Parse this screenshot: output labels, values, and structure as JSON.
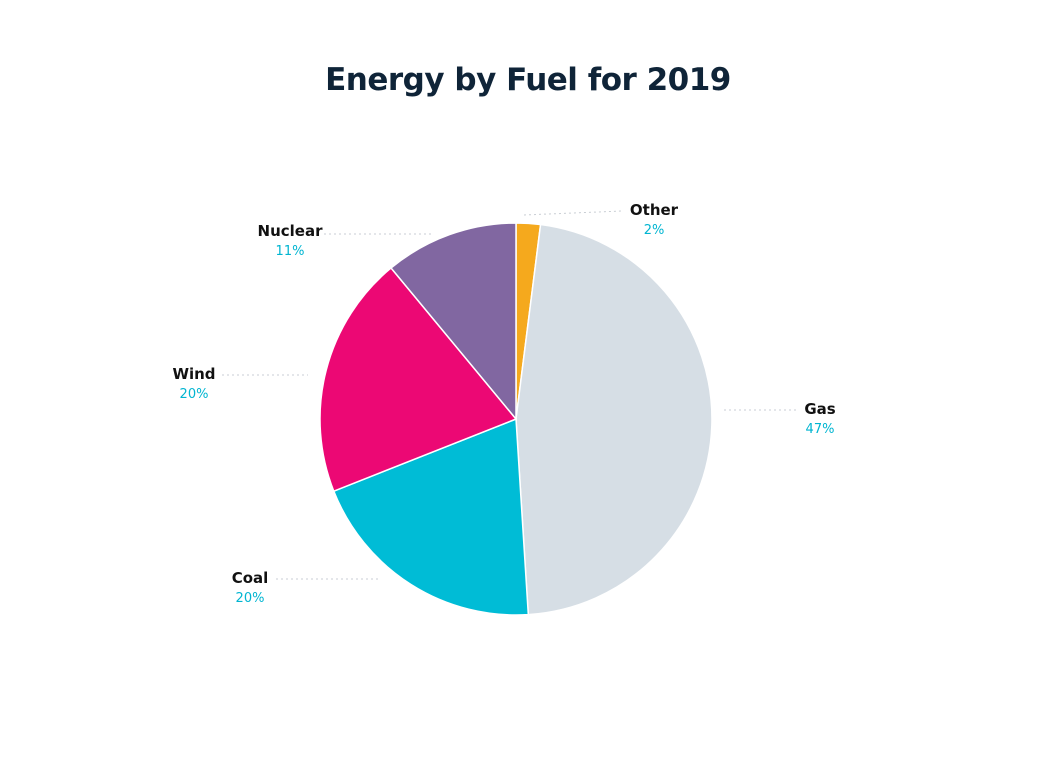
{
  "chart_data": {
    "type": "pie",
    "title": "Energy by Fuel for 2019",
    "unit": "%",
    "slices": [
      {
        "label": "Other",
        "value": 2,
        "value_label": "2%",
        "color": "#f5a91d"
      },
      {
        "label": "Gas",
        "value": 47,
        "value_label": "47%",
        "color": "#d6dee5"
      },
      {
        "label": "Coal",
        "value": 20,
        "value_label": "20%",
        "color": "#00bcd6"
      },
      {
        "label": "Wind",
        "value": 20,
        "value_label": "20%",
        "color": "#ec0874"
      },
      {
        "label": "Nuclear",
        "value": 11,
        "value_label": "11%",
        "color": "#8167a1"
      }
    ],
    "start": "top",
    "direction": "clockwise",
    "legend": "none"
  }
}
